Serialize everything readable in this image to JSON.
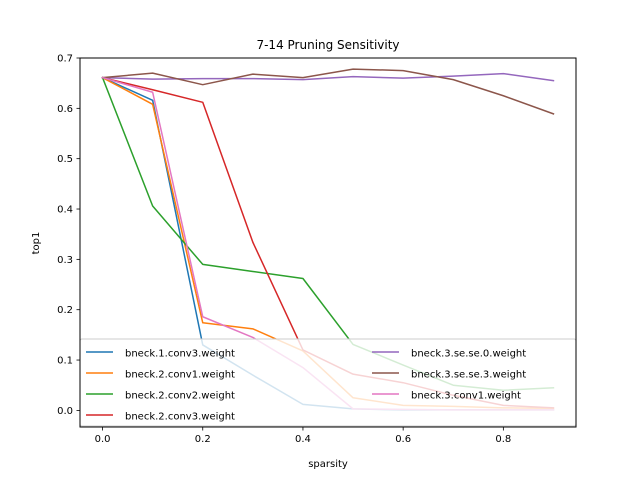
{
  "chart_data": {
    "type": "line",
    "title": "7-14 Pruning Sensitivity",
    "xlabel": "sparsity",
    "ylabel": "top1",
    "xlim": [
      -0.045,
      0.945
    ],
    "ylim": [
      -0.033,
      0.7
    ],
    "xticks": [
      0.0,
      0.2,
      0.4,
      0.6,
      0.8
    ],
    "xtick_labels": [
      "0.0",
      "0.2",
      "0.4",
      "0.6",
      "0.8"
    ],
    "yticks": [
      0.0,
      0.1,
      0.2,
      0.3,
      0.4,
      0.5,
      0.6,
      0.7
    ],
    "ytick_labels": [
      "0.0",
      "0.1",
      "0.2",
      "0.3",
      "0.4",
      "0.5",
      "0.6",
      "0.7"
    ],
    "grid": false,
    "legend_placement": "lower-center",
    "x": [
      0.0,
      0.1,
      0.2,
      0.3,
      0.4,
      0.5,
      0.6,
      0.7,
      0.8,
      0.9
    ],
    "series": [
      {
        "name": "bneck.1.conv3.weight",
        "color": "#1f77b4",
        "values": [
          0.661,
          0.616,
          0.13,
          0.07,
          0.012,
          0.003,
          0.001,
          0.001,
          0.001,
          0.001
        ]
      },
      {
        "name": "bneck.2.conv1.weight",
        "color": "#ff7f0e",
        "values": [
          0.661,
          0.608,
          0.174,
          0.162,
          0.118,
          0.025,
          0.01,
          0.008,
          0.005,
          0.004
        ]
      },
      {
        "name": "bneck.2.conv2.weight",
        "color": "#2ca02c",
        "values": [
          0.661,
          0.406,
          0.29,
          0.276,
          0.262,
          0.131,
          0.09,
          0.05,
          0.04,
          0.045
        ]
      },
      {
        "name": "bneck.2.conv3.weight",
        "color": "#d62728",
        "values": [
          0.661,
          0.637,
          0.612,
          0.334,
          0.12,
          0.072,
          0.055,
          0.03,
          0.01,
          0.005
        ]
      },
      {
        "name": "bneck.3.se.se.0.weight",
        "color": "#9467bd",
        "values": [
          0.661,
          0.658,
          0.659,
          0.659,
          0.657,
          0.663,
          0.66,
          0.664,
          0.669,
          0.655
        ]
      },
      {
        "name": "bneck.3.se.se.3.weight",
        "color": "#8c564b",
        "values": [
          0.661,
          0.67,
          0.647,
          0.668,
          0.661,
          0.678,
          0.675,
          0.657,
          0.625,
          0.589
        ]
      },
      {
        "name": "bneck.3.conv1.weight",
        "color": "#e377c2",
        "values": [
          0.661,
          0.632,
          0.186,
          0.145,
          0.085,
          0.003,
          0.002,
          0.001,
          0.001,
          0.001
        ]
      }
    ]
  }
}
